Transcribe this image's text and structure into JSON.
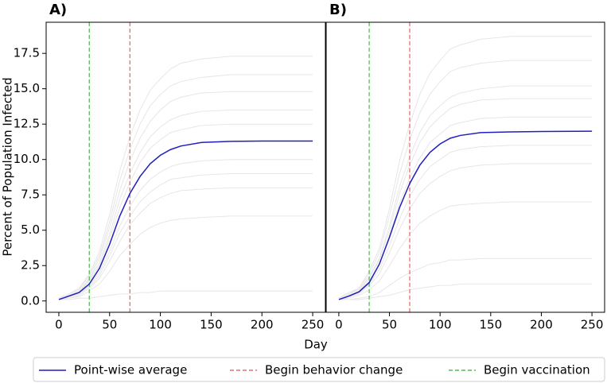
{
  "xlabel": "Day",
  "legend": {
    "entries": [
      {
        "label": "Point-wise average",
        "color": "#1f1fbf",
        "style": "solid"
      },
      {
        "label": "Begin behavior change",
        "color": "#e8706a",
        "style": "dashed"
      },
      {
        "label": "Begin vaccination",
        "color": "#5cb85c",
        "style": "dashed"
      }
    ]
  },
  "chart_data": [
    {
      "type": "line",
      "title": "A)",
      "ylabel": "Percent of Population Infected",
      "x": [
        0,
        10,
        20,
        30,
        40,
        50,
        60,
        70,
        80,
        90,
        100,
        110,
        120,
        140,
        170,
        200,
        250
      ],
      "xlim": [
        -12.5,
        262.5
      ],
      "xticks": [
        0,
        50,
        100,
        150,
        200,
        250
      ],
      "ylim": [
        -0.8,
        19.7
      ],
      "yticks": [
        {
          "value": 0,
          "label": "0.0"
        },
        {
          "value": 2.5,
          "label": "2.5"
        },
        {
          "value": 5,
          "label": "5.0"
        },
        {
          "value": 7.5,
          "label": "7.5"
        },
        {
          "value": 10,
          "label": "10.0"
        },
        {
          "value": 12.5,
          "label": "12.5"
        },
        {
          "value": 15,
          "label": "15.0"
        },
        {
          "value": 17.5,
          "label": "17.5"
        }
      ],
      "series": [
        {
          "color": "#1f1fbf",
          "values": [
            0.1,
            0.35,
            0.6,
            1.2,
            2.3,
            4.0,
            6.0,
            7.6,
            8.8,
            9.7,
            10.3,
            10.7,
            10.95,
            11.2,
            11.28,
            11.3,
            11.3
          ]
        }
      ],
      "runs": {
        "color": "#e6e6e6",
        "values": [
          [
            0.2,
            0.5,
            0.9,
            1.9,
            3.5,
            6.1,
            9.2,
            11.6,
            13.5,
            14.9,
            15.7,
            16.4,
            16.8,
            17.1,
            17.3,
            17.3,
            17.3
          ],
          [
            0.2,
            0.5,
            0.8,
            1.8,
            3.2,
            5.6,
            8.5,
            10.7,
            12.5,
            13.8,
            14.6,
            15.2,
            15.5,
            15.8,
            16.0,
            16.0,
            16.0
          ],
          [
            0.1,
            0.4,
            0.7,
            1.6,
            3.0,
            5.2,
            7.8,
            9.9,
            11.5,
            12.7,
            13.5,
            14.1,
            14.4,
            14.7,
            14.8,
            14.8,
            14.8
          ],
          [
            0.1,
            0.4,
            0.7,
            1.5,
            2.7,
            4.7,
            7.2,
            9.0,
            10.5,
            11.6,
            12.3,
            12.8,
            13.1,
            13.4,
            13.5,
            13.5,
            13.5
          ],
          [
            0.1,
            0.4,
            0.6,
            1.4,
            2.5,
            4.4,
            6.6,
            8.4,
            9.8,
            10.8,
            11.4,
            11.9,
            12.1,
            12.4,
            12.5,
            12.5,
            12.5
          ],
          [
            0.1,
            0.3,
            0.5,
            1.1,
            2.0,
            3.5,
            5.3,
            6.7,
            7.8,
            8.6,
            9.1,
            9.5,
            9.7,
            9.9,
            10.0,
            10.0,
            10.0
          ],
          [
            0.1,
            0.3,
            0.5,
            1.0,
            1.8,
            3.2,
            4.8,
            6.0,
            7.0,
            7.7,
            8.2,
            8.6,
            8.7,
            8.9,
            9.0,
            9.0,
            9.0
          ],
          [
            0.1,
            0.2,
            0.4,
            0.9,
            1.6,
            2.8,
            4.2,
            5.4,
            6.2,
            6.9,
            7.3,
            7.6,
            7.8,
            7.9,
            8.0,
            8.0,
            8.0
          ],
          [
            0.1,
            0.2,
            0.3,
            0.7,
            1.2,
            2.1,
            3.2,
            4.0,
            4.7,
            5.2,
            5.5,
            5.7,
            5.8,
            5.9,
            6.0,
            6.0,
            6.0
          ],
          [
            0.1,
            0.1,
            0.2,
            0.2,
            0.3,
            0.4,
            0.5,
            0.5,
            0.6,
            0.6,
            0.7,
            0.7,
            0.7,
            0.7,
            0.7,
            0.7,
            0.7
          ]
        ]
      },
      "vlines": [
        {
          "x": 30,
          "color": "#5cb85c"
        },
        {
          "x": 70,
          "color": "#e8706a"
        }
      ]
    },
    {
      "type": "line",
      "title": "B)",
      "x": [
        0,
        10,
        20,
        30,
        40,
        50,
        60,
        70,
        80,
        90,
        100,
        110,
        120,
        140,
        170,
        200,
        250
      ],
      "xlim": [
        -12.5,
        262.5
      ],
      "xticks": [
        0,
        50,
        100,
        150,
        200,
        250
      ],
      "ylim": [
        -0.8,
        19.7
      ],
      "series": [
        {
          "color": "#1f1fbf",
          "values": [
            0.1,
            0.35,
            0.65,
            1.3,
            2.6,
            4.5,
            6.6,
            8.3,
            9.6,
            10.5,
            11.1,
            11.5,
            11.7,
            11.9,
            11.95,
            11.98,
            12.0
          ]
        }
      ],
      "runs": {
        "color": "#e6e6e6",
        "values": [
          [
            0.2,
            0.6,
            0.9,
            2.1,
            3.7,
            6.5,
            9.9,
            12.5,
            14.6,
            16.1,
            17.0,
            17.8,
            18.1,
            18.5,
            18.7,
            18.7,
            18.7
          ],
          [
            0.2,
            0.5,
            0.9,
            1.9,
            3.4,
            6.0,
            9.0,
            11.4,
            13.3,
            14.6,
            15.5,
            16.2,
            16.5,
            16.8,
            17.0,
            17.0,
            17.0
          ],
          [
            0.2,
            0.5,
            0.8,
            1.7,
            3.0,
            5.3,
            8.1,
            10.2,
            11.9,
            13.1,
            13.8,
            14.4,
            14.7,
            15.0,
            15.2,
            15.2,
            15.2
          ],
          [
            0.1,
            0.4,
            0.7,
            1.6,
            2.9,
            5.0,
            7.6,
            9.6,
            11.2,
            12.3,
            13.0,
            13.6,
            13.9,
            14.2,
            14.3,
            14.3,
            14.3
          ],
          [
            0.1,
            0.4,
            0.7,
            1.4,
            2.6,
            4.6,
            6.9,
            8.7,
            10.1,
            11.2,
            11.8,
            12.4,
            12.6,
            12.9,
            13.0,
            13.0,
            13.0
          ],
          [
            0.1,
            0.3,
            0.6,
            1.2,
            2.2,
            3.9,
            5.8,
            7.4,
            8.6,
            9.5,
            10.0,
            10.5,
            10.7,
            10.9,
            11.0,
            11.0,
            11.0
          ],
          [
            0.1,
            0.3,
            0.5,
            1.1,
            1.9,
            3.4,
            5.1,
            6.5,
            7.6,
            8.3,
            8.8,
            9.2,
            9.4,
            9.6,
            9.7,
            9.7,
            9.7
          ],
          [
            0.1,
            0.2,
            0.4,
            0.8,
            1.4,
            2.5,
            3.7,
            4.7,
            5.5,
            6.0,
            6.4,
            6.7,
            6.8,
            6.9,
            7.0,
            7.0,
            7.0
          ],
          [
            0.1,
            0.1,
            0.2,
            0.3,
            0.6,
            1.1,
            1.6,
            2.0,
            2.3,
            2.6,
            2.7,
            2.9,
            2.9,
            3.0,
            3.0,
            3.0,
            3.0
          ],
          [
            0.1,
            0.1,
            0.1,
            0.2,
            0.3,
            0.4,
            0.6,
            0.8,
            0.9,
            1.0,
            1.1,
            1.1,
            1.2,
            1.2,
            1.2,
            1.2,
            1.2
          ]
        ]
      },
      "vlines": [
        {
          "x": 30,
          "color": "#5cb85c"
        },
        {
          "x": 70,
          "color": "#e8706a"
        }
      ]
    }
  ]
}
